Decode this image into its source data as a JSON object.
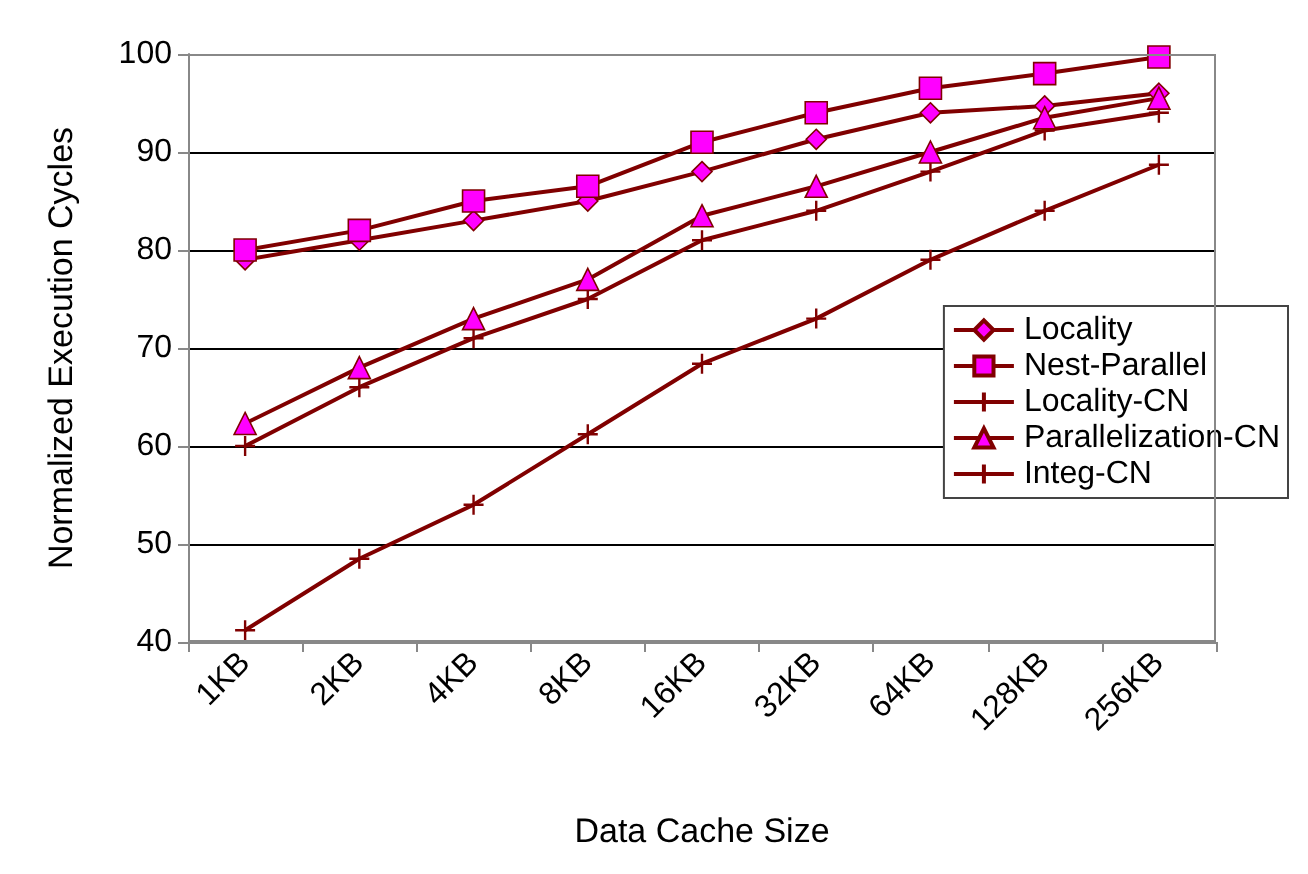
{
  "chart_data": {
    "type": "line",
    "xlabel": "Data Cache Size",
    "ylabel": "Normalized Execution Cycles",
    "categories": [
      "1KB",
      "2KB",
      "4KB",
      "8KB",
      "16KB",
      "32KB",
      "64KB",
      "128KB",
      "256KB"
    ],
    "ylim": [
      40,
      100
    ],
    "yticks": [
      40,
      50,
      60,
      70,
      80,
      90,
      100
    ],
    "grid": "y",
    "legend": "right",
    "series": [
      {
        "name": "Locality",
        "color": "#800000",
        "marker": "diamond",
        "values": [
          79,
          81,
          83,
          85,
          88,
          91.3,
          94,
          94.7,
          96
        ]
      },
      {
        "name": "Nest-Parallel",
        "color": "#800000",
        "marker": "square",
        "values": [
          80,
          82,
          85,
          86.5,
          91,
          94,
          96.5,
          98,
          99.7
        ]
      },
      {
        "name": "Locality-CN",
        "color": "#800000",
        "marker": "cross",
        "values": [
          60,
          66,
          71,
          75,
          81,
          84,
          88,
          92.2,
          94
        ]
      },
      {
        "name": "Parallelization-CN",
        "color": "#800000",
        "marker": "triangle",
        "values": [
          62.3,
          68,
          73,
          77,
          83.5,
          86.5,
          90,
          93.5,
          95.5
        ]
      },
      {
        "name": "Integ-CN",
        "color": "#800000",
        "marker": "cross",
        "values": [
          41.2,
          48.5,
          54,
          61.2,
          68.4,
          73,
          79,
          84,
          88.7
        ]
      }
    ]
  }
}
